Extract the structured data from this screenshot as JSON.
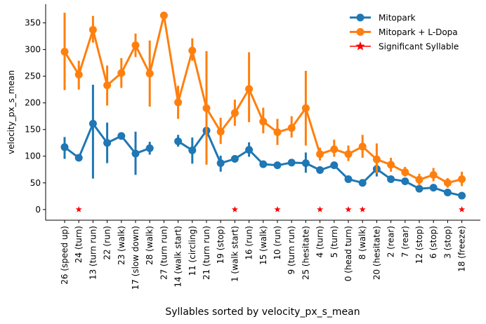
{
  "chart_data": {
    "type": "line",
    "title": "",
    "xlabel": "Syllables sorted by velocity_px_s_mean",
    "ylabel": "velocity_px_s_mean",
    "ylim": [
      -20,
      385
    ],
    "yticks": [
      0,
      50,
      100,
      150,
      200,
      250,
      300,
      350
    ],
    "grid": false,
    "legend_position": "top-right",
    "categories": [
      "26 (speed up)",
      "24 (turn)",
      "13 (turn run)",
      "22 (run)",
      "23 (walk)",
      "17 (slow down)",
      "28 (walk)",
      "27 (turn run)",
      "14 (walk start)",
      "11 (circling)",
      "21 (turn run)",
      "19 (stop)",
      "1 (walk start)",
      "16 (run)",
      "15 (walk)",
      "10 (run)",
      "9 (turn run)",
      "25 (hesitate)",
      "4 (turn)",
      "5 (turn)",
      "0 (head turn)",
      "8 (walk)",
      "20 (hesitate)",
      "2 (rear)",
      "7 (rear)",
      "12 (stop)",
      "6 (stop)",
      "3 (stop)",
      "18 (freeze)"
    ],
    "series": [
      {
        "name": "Mitopark",
        "color": "#1f77b4",
        "values": [
          117,
          97,
          161,
          125,
          138,
          105,
          115,
          null,
          128,
          111,
          148,
          87,
          95,
          112,
          85,
          83,
          88,
          87,
          74,
          83,
          57,
          50,
          76,
          57,
          53,
          39,
          41,
          32,
          26
        ],
        "err_low": [
          95,
          97,
          58,
          87,
          138,
          65,
          103,
          null,
          118,
          86,
          148,
          71,
          95,
          99,
          85,
          80,
          88,
          69,
          74,
          83,
          57,
          50,
          62,
          57,
          53,
          39,
          41,
          32,
          26
        ],
        "err_high": [
          136,
          97,
          234,
          163,
          138,
          146,
          127,
          null,
          140,
          135,
          148,
          101,
          95,
          126,
          85,
          86,
          88,
          107,
          74,
          83,
          57,
          50,
          86,
          57,
          53,
          39,
          41,
          32,
          26
        ]
      },
      {
        "name": "Mitopark + L-Dopa",
        "color": "#ff7f0e",
        "values": [
          296,
          253,
          337,
          233,
          256,
          308,
          255,
          364,
          201,
          298,
          190,
          146,
          181,
          226,
          165,
          145,
          153,
          190,
          104,
          113,
          104,
          118,
          94,
          84,
          70,
          56,
          65,
          50,
          57
        ],
        "err_low": [
          224,
          225,
          313,
          195,
          228,
          286,
          193,
          364,
          170,
          279,
          84,
          123,
          157,
          164,
          143,
          121,
          135,
          120,
          92,
          99,
          91,
          97,
          68,
          71,
          62,
          45,
          53,
          41,
          44
        ],
        "err_high": [
          369,
          279,
          363,
          270,
          284,
          330,
          317,
          364,
          232,
          321,
          297,
          172,
          206,
          295,
          191,
          170,
          175,
          260,
          116,
          131,
          120,
          140,
          124,
          97,
          80,
          67,
          78,
          59,
          71
        ]
      }
    ],
    "significant": {
      "name": "Significant Syllable",
      "color": "#ff0000",
      "y": 0,
      "categories": [
        "24 (turn)",
        "1 (walk start)",
        "10 (run)",
        "4 (turn)",
        "0 (head turn)",
        "8 (walk)",
        "18 (freeze)"
      ]
    }
  }
}
